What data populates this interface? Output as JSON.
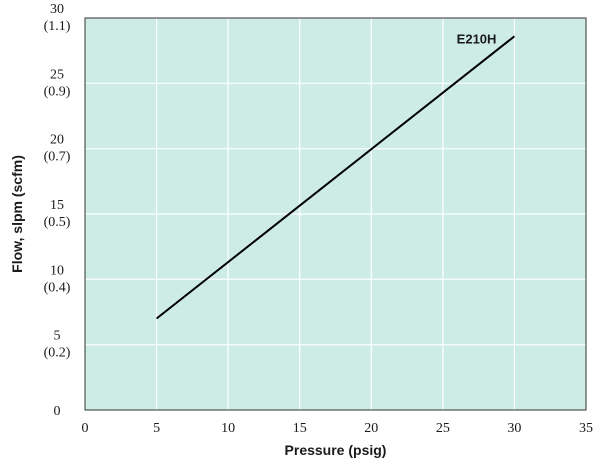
{
  "chart_data": {
    "type": "line",
    "title": "",
    "xlabel": "Pressure (psig)",
    "ylabel": "Flow, slpm (scfm)",
    "xlim": [
      0,
      35
    ],
    "ylim": [
      0,
      30
    ],
    "x_ticks": [
      {
        "value": 0,
        "label": "0"
      },
      {
        "value": 5,
        "label": "5"
      },
      {
        "value": 10,
        "label": "10"
      },
      {
        "value": 15,
        "label": "15"
      },
      {
        "value": 20,
        "label": "20"
      },
      {
        "value": 25,
        "label": "25"
      },
      {
        "value": 30,
        "label": "30"
      },
      {
        "value": 35,
        "label": "35"
      }
    ],
    "y_ticks": [
      {
        "value": 0,
        "label": "0",
        "sub": ""
      },
      {
        "value": 5,
        "label": "5",
        "sub": "(0.2)"
      },
      {
        "value": 10,
        "label": "10",
        "sub": "(0.4)"
      },
      {
        "value": 15,
        "label": "15",
        "sub": "(0.5)"
      },
      {
        "value": 20,
        "label": "20",
        "sub": "(0.7)"
      },
      {
        "value": 25,
        "label": "25",
        "sub": "(0.9)"
      },
      {
        "value": 30,
        "label": "30",
        "sub": "(1.1)"
      }
    ],
    "grid": true,
    "colors": {
      "plot_background": "#cdece6",
      "grid": "#ffffff",
      "frame": "#333333",
      "line": "#000000"
    },
    "series": [
      {
        "name": "E210H",
        "x": [
          5,
          30
        ],
        "y": [
          7.0,
          28.6
        ]
      }
    ]
  }
}
